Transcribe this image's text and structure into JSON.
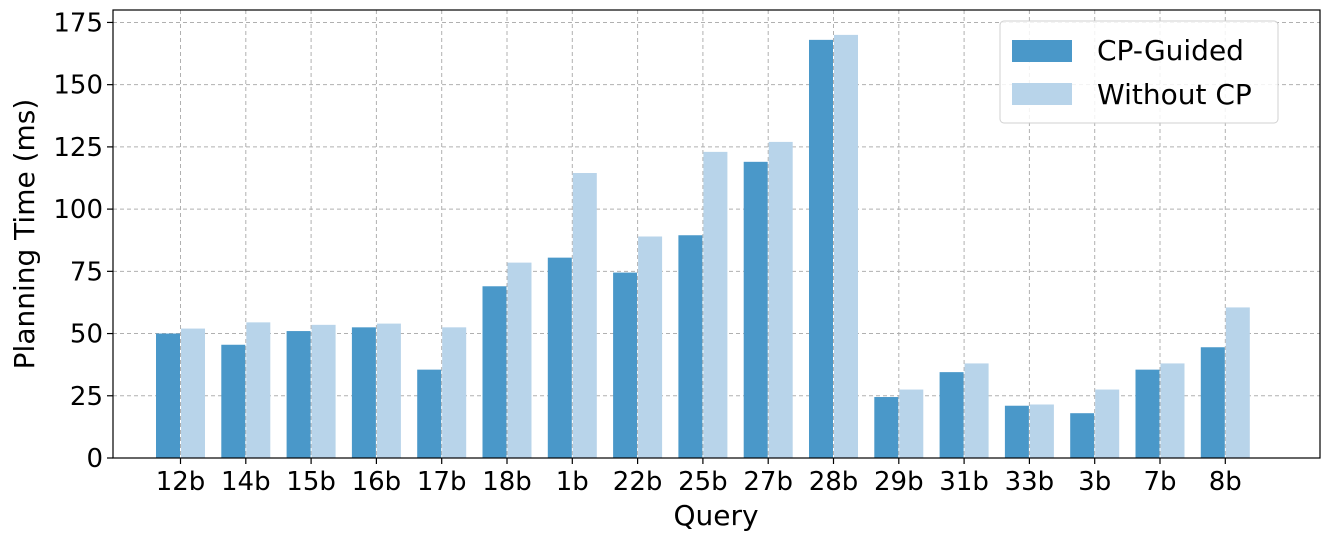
{
  "chart_data": {
    "type": "bar",
    "title": "",
    "xlabel": "Query",
    "ylabel": "Planning Time (ms)",
    "ylim": [
      0,
      180
    ],
    "yticks": [
      0,
      25,
      50,
      75,
      100,
      125,
      150,
      175
    ],
    "grid": true,
    "legend_position": "top-right",
    "categories": [
      "12b",
      "14b",
      "15b",
      "16b",
      "17b",
      "18b",
      "1b",
      "22b",
      "25b",
      "27b",
      "28b",
      "29b",
      "31b",
      "33b",
      "3b",
      "7b",
      "8b"
    ],
    "series": [
      {
        "name": "CP-Guided",
        "color": "#4a98c9",
        "values": [
          50,
          45.5,
          51,
          52.5,
          35.5,
          69,
          80.5,
          74.5,
          89.5,
          119,
          168,
          24.5,
          34.5,
          21,
          18,
          35.5,
          44.5
        ]
      },
      {
        "name": "Without CP",
        "color": "#b8d4ea",
        "values": [
          52,
          54.5,
          53.5,
          54,
          52.5,
          78.5,
          114.5,
          89,
          123,
          127,
          170,
          27.5,
          38,
          21.5,
          27.5,
          38,
          60.5
        ]
      }
    ]
  }
}
